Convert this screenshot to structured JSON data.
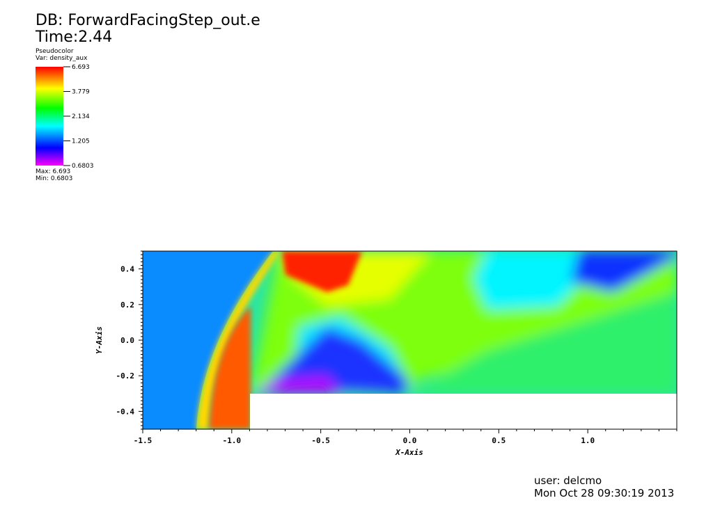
{
  "header": {
    "db_line": "DB: ForwardFacingStep_out.e",
    "time_line": "Time:2.44"
  },
  "legend": {
    "plot_type": "Pseudocolor",
    "var_line": "Var: density_aux",
    "max_line": "Max:  6.693",
    "min_line": "Min:  0.6803",
    "ticks": [
      {
        "value": 6.693,
        "label": "6.693"
      },
      {
        "value": 3.779,
        "label": "3.779"
      },
      {
        "value": 2.134,
        "label": "2.134"
      },
      {
        "value": 1.205,
        "label": "1.205"
      },
      {
        "value": 0.6803,
        "label": "0.6803"
      }
    ],
    "colors": [
      "#ff00ff",
      "#0000ff",
      "#00ffff",
      "#00ff00",
      "#ffff00",
      "#ff0000"
    ]
  },
  "footer": {
    "user_line": "user: delcmo",
    "date_line": "Mon Oct 28 09:30:19 2013"
  },
  "chart_data": {
    "type": "heatmap",
    "title": "DB: ForwardFacingStep_out.e",
    "xlabel": "X-Axis",
    "ylabel": "Y-Axis",
    "xlim": [
      -1.5,
      1.5
    ],
    "ylim": [
      -0.5,
      0.5
    ],
    "xticks": [
      -1.5,
      -1.0,
      -0.5,
      0.0,
      0.5,
      1.0
    ],
    "xtick_labels": [
      "-1.5",
      "-1.0",
      "-0.5",
      "0.0",
      "0.5",
      "1.0"
    ],
    "yticks": [
      -0.4,
      -0.2,
      0.0,
      0.2,
      0.4
    ],
    "ytick_labels": [
      "-0.4",
      "-0.2",
      "0.0",
      "0.2",
      "0.4"
    ],
    "variable": "density_aux",
    "time": 2.44,
    "min": 0.6803,
    "max": 6.693,
    "step": {
      "x_start": -0.9,
      "y_top": -0.3
    },
    "regions": [
      {
        "name": "inflow",
        "value": 1.4,
        "color": "#0a8cff"
      },
      {
        "name": "post-bow-shock",
        "value": 4.5,
        "color": "#ff6a00"
      },
      {
        "name": "mach-stem-high",
        "value": 6.5,
        "color": "#ff1a00"
      },
      {
        "name": "mid-field",
        "value": 2.8,
        "color": "#7dff00"
      },
      {
        "name": "expansion-corner",
        "value": 0.75,
        "color": "#c300ff"
      },
      {
        "name": "expansion-core",
        "value": 1.05,
        "color": "#1428ff"
      },
      {
        "name": "downstream-lower",
        "value": 2.4,
        "color": "#00ff6a"
      },
      {
        "name": "top-right-low",
        "value": 1.1,
        "color": "#0a32ff"
      }
    ]
  }
}
